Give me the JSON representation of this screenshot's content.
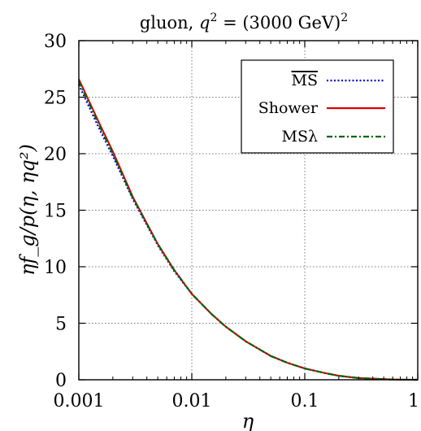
{
  "chart_data": {
    "type": "line",
    "title": "gluon, q² = (3000 GeV)²",
    "xlabel": "η",
    "ylabel": "ηf_g/p(η, ηq²)",
    "xscale": "log",
    "xlim": [
      0.001,
      1
    ],
    "ylim": [
      0,
      30
    ],
    "grid": true,
    "legend_position": "top-right",
    "xticks": [
      {
        "value": 0.001,
        "label": "0.001"
      },
      {
        "value": 0.01,
        "label": "0.01"
      },
      {
        "value": 0.1,
        "label": "0.1"
      },
      {
        "value": 1,
        "label": "1"
      }
    ],
    "yticks": [
      {
        "value": 0,
        "label": "0"
      },
      {
        "value": 5,
        "label": "5"
      },
      {
        "value": 10,
        "label": "10"
      },
      {
        "value": 15,
        "label": "15"
      },
      {
        "value": 20,
        "label": "20"
      },
      {
        "value": 25,
        "label": "25"
      },
      {
        "value": 30,
        "label": "30"
      }
    ],
    "series": [
      {
        "name": "MS",
        "legend_overline": true,
        "color": "#0000cc",
        "style": "dotted",
        "x": [
          0.001,
          0.0015,
          0.002,
          0.003,
          0.005,
          0.007,
          0.01,
          0.015,
          0.02,
          0.03,
          0.05,
          0.07,
          0.1,
          0.15,
          0.2,
          0.3,
          0.5,
          0.7,
          1.0
        ],
        "y": [
          26.1,
          22.3,
          19.8,
          16.0,
          11.9,
          9.6,
          7.6,
          5.8,
          4.7,
          3.4,
          2.1,
          1.5,
          1.0,
          0.6,
          0.35,
          0.15,
          0.05,
          0.01,
          0.0
        ]
      },
      {
        "name": "Shower",
        "color": "#dd0000",
        "style": "solid",
        "x": [
          0.001,
          0.0015,
          0.002,
          0.003,
          0.005,
          0.007,
          0.01,
          0.015,
          0.02,
          0.03,
          0.05,
          0.07,
          0.1,
          0.15,
          0.2,
          0.3,
          0.5,
          0.7,
          1.0
        ],
        "y": [
          26.6,
          22.8,
          20.2,
          16.2,
          12.0,
          9.7,
          7.6,
          5.8,
          4.7,
          3.4,
          2.1,
          1.5,
          1.0,
          0.6,
          0.35,
          0.15,
          0.05,
          0.01,
          0.0
        ]
      },
      {
        "name": "MSλ",
        "legend_overline": true,
        "color": "#006600",
        "style": "dashdot",
        "x": [
          0.001,
          0.0015,
          0.002,
          0.003,
          0.005,
          0.007,
          0.01,
          0.015,
          0.02,
          0.03,
          0.05,
          0.07,
          0.1,
          0.15,
          0.2,
          0.3,
          0.5,
          0.7,
          1.0
        ],
        "y": [
          26.4,
          22.6,
          20.0,
          16.1,
          12.0,
          9.7,
          7.6,
          5.8,
          4.7,
          3.4,
          2.1,
          1.5,
          1.0,
          0.6,
          0.35,
          0.15,
          0.05,
          0.01,
          0.0
        ]
      }
    ]
  }
}
